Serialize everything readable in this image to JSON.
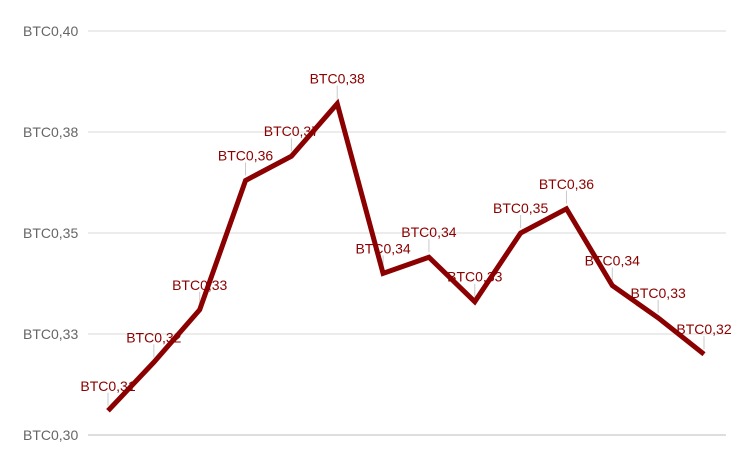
{
  "chart_data": {
    "type": "line",
    "title": "",
    "xlabel": "",
    "ylabel": "",
    "ylim": [
      0.3,
      0.4
    ],
    "grid": true,
    "legend": "none",
    "y_ticks": [
      {
        "value": 0.3,
        "label": "BTC0,30"
      },
      {
        "value": 0.325,
        "label": "BTC0,33"
      },
      {
        "value": 0.35,
        "label": "BTC0,35"
      },
      {
        "value": 0.375,
        "label": "BTC0,38"
      },
      {
        "value": 0.4,
        "label": "BTC0,40"
      }
    ],
    "series": [
      {
        "color": "#8b0000",
        "values": [
          0.306,
          0.318,
          0.331,
          0.363,
          0.369,
          0.382,
          0.34,
          0.344,
          0.333,
          0.35,
          0.356,
          0.337,
          0.329,
          0.32
        ],
        "labels": [
          "BTC0,31",
          "BTC0,32",
          "BTC0,33",
          "BTC0,36",
          "BTC0,37",
          "BTC0,38",
          "BTC0,34",
          "BTC0,34",
          "BTC0,33",
          "BTC0,35",
          "BTC0,36",
          "BTC0,34",
          "BTC0,33",
          "BTC0,32"
        ]
      }
    ]
  }
}
